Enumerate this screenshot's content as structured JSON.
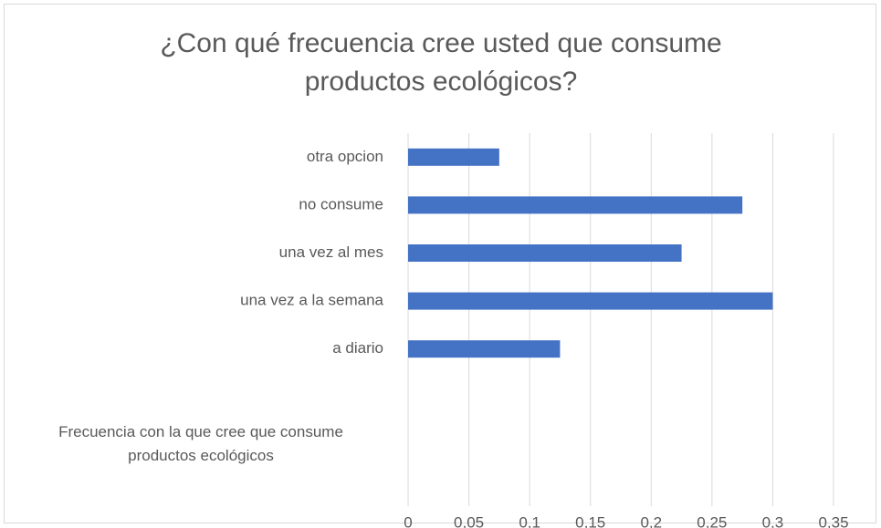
{
  "chart_data": {
    "type": "bar",
    "orientation": "horizontal",
    "title": "¿Con qué frecuencia cree usted que consume productos ecológicos?",
    "categories": [
      "Frecuencia con la que cree que consume productos ecológicos",
      null,
      "a diario",
      "una vez a la semana",
      "una vez al mes",
      "no consume",
      "otra opcion"
    ],
    "values": [
      null,
      null,
      0.125,
      0.3,
      0.225,
      0.275,
      0.075
    ],
    "color": "#4472c4",
    "xlim": [
      0,
      0.35
    ],
    "xticks": [
      0,
      {
        "value": 0.05,
        "label": "0,05"
      },
      {
        "value": 0.1,
        "label": "0,1"
      },
      {
        "value": 0.15,
        "label": "0,15"
      },
      {
        "value": 0.2,
        "label": "0,2"
      },
      {
        "value": 0.25,
        "label": "0,25"
      },
      {
        "value": 0.3,
        "label": "0,3"
      },
      {
        "value": 0.35,
        "label": "0,35"
      }
    ],
    "grid": true
  }
}
